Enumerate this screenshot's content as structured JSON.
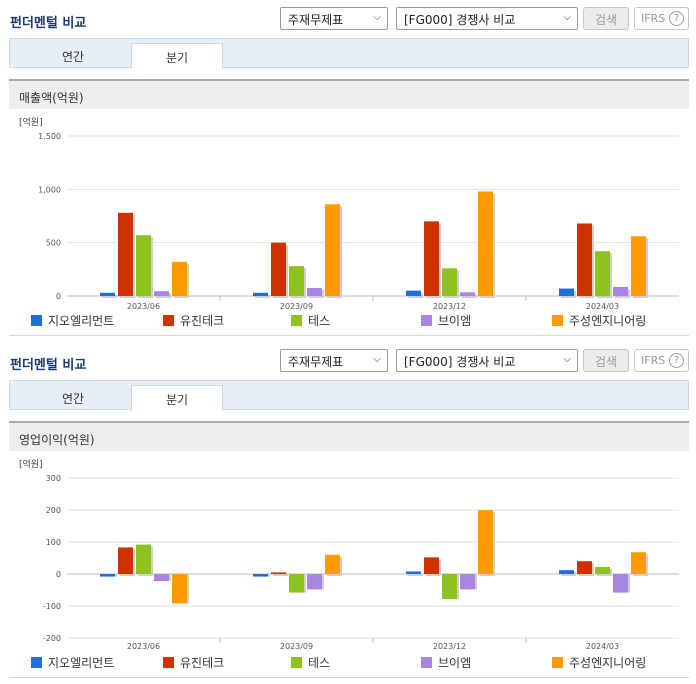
{
  "panels": [
    {
      "title": "펀더멘털 비교",
      "select1": "주재무제표",
      "select2": "[FG000] 경쟁사 비교",
      "search_label": "검색",
      "ifrs_label": "IFRS",
      "ifrs_help": "?",
      "tabs": [
        {
          "label": "연간"
        },
        {
          "label": "분기"
        }
      ],
      "active_tab": 1,
      "section_title": "매출액(억원)"
    },
    {
      "title": "펀더멘털 비교",
      "select1": "주재무제표",
      "select2": "[FG000] 경쟁사 비교",
      "search_label": "검색",
      "ifrs_label": "IFRS",
      "ifrs_help": "?",
      "tabs": [
        {
          "label": "연간"
        },
        {
          "label": "분기"
        }
      ],
      "active_tab": 1,
      "section_title": "영업이익(억원)"
    }
  ],
  "colors": {
    "지오엘리먼트": "#1f6fd8",
    "유진테크": "#cc3300",
    "테스": "#8dc21f",
    "브이엠": "#a885e0",
    "주성엔지니어링": "#ff9a00"
  },
  "chart_data": [
    {
      "type": "bar",
      "unit_label": "[억원]",
      "categories": [
        "2023/06",
        "2023/09",
        "2023/12",
        "2024/03"
      ],
      "ylim": [
        0,
        1500
      ],
      "yticks": [
        0,
        500,
        1000,
        1500
      ],
      "ytick_labels": [
        "0",
        "500",
        "1,000",
        "1,500"
      ],
      "series": [
        {
          "name": "지오엘리먼트",
          "values": [
            30,
            30,
            50,
            70
          ]
        },
        {
          "name": "유진테크",
          "values": [
            780,
            500,
            700,
            680
          ]
        },
        {
          "name": "테스",
          "values": [
            570,
            280,
            260,
            420
          ]
        },
        {
          "name": "브이엠",
          "values": [
            45,
            75,
            35,
            85
          ]
        },
        {
          "name": "주성엔지니어링",
          "values": [
            320,
            860,
            980,
            560
          ]
        }
      ]
    },
    {
      "type": "bar",
      "unit_label": "[억원]",
      "categories": [
        "2023/06",
        "2023/09",
        "2023/12",
        "2024/03"
      ],
      "ylim": [
        -200,
        300
      ],
      "yticks": [
        -200,
        -100,
        0,
        100,
        200,
        300
      ],
      "ytick_labels": [
        "-200",
        "-100",
        "0",
        "100",
        "200",
        "300"
      ],
      "series": [
        {
          "name": "지오엘리먼트",
          "values": [
            -8,
            -8,
            8,
            12
          ]
        },
        {
          "name": "유진테크",
          "values": [
            83,
            5,
            52,
            40
          ]
        },
        {
          "name": "테스",
          "values": [
            92,
            -58,
            -78,
            22
          ]
        },
        {
          "name": "브이엠",
          "values": [
            -22,
            -48,
            -48,
            -58
          ]
        },
        {
          "name": "주성엔지니어링",
          "values": [
            -92,
            60,
            200,
            68
          ]
        }
      ]
    }
  ]
}
